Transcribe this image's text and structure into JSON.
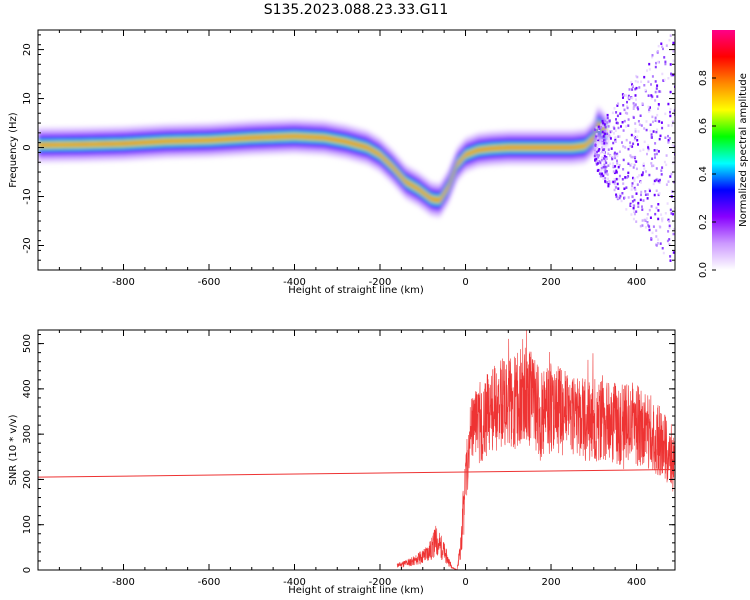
{
  "chart_data": {
    "title": "S135.2023.088.23.33.G11",
    "panels": [
      {
        "type": "heatmap",
        "xlabel": "Height of straight line (km)",
        "ylabel": "Frequency (Hz)",
        "xlim": [
          -1000,
          490
        ],
        "ylim": [
          -25,
          24
        ],
        "xticks": [
          -800,
          -600,
          -400,
          -200,
          0,
          200,
          400
        ],
        "yticks": [
          -20,
          -10,
          0,
          10,
          20
        ],
        "ridge": {
          "x": [
            -1000,
            -900,
            -800,
            -700,
            -600,
            -500,
            -400,
            -330,
            -280,
            -230,
            -200,
            -170,
            -140,
            -110,
            -80,
            -60,
            -40,
            -20,
            0,
            30,
            60,
            100,
            150,
            200,
            250,
            280,
            300,
            310,
            330
          ],
          "y": [
            0.5,
            0.6,
            0.8,
            1.3,
            1.5,
            2.0,
            2.3,
            2.0,
            1.2,
            0.0,
            -1.5,
            -4.0,
            -7.0,
            -8.5,
            -10.5,
            -10.8,
            -8.0,
            -3.5,
            -1.5,
            -0.5,
            -0.2,
            0.0,
            0.0,
            0.0,
            0.0,
            0.3,
            2.0,
            5.0,
            3.0
          ]
        },
        "colorbar": {
          "label": "Normalized spectral amplitude",
          "range": [
            0,
            1
          ],
          "ticks": [
            0.0,
            0.2,
            0.4,
            0.6,
            0.8
          ],
          "tick_labels": [
            "0.0",
            "0.2",
            "0.4",
            "0.6",
            "0.8"
          ],
          "colors": [
            "#ffffff",
            "#cc99ff",
            "#8800ff",
            "#0000ff",
            "#00ffff",
            "#00ff00",
            "#ffff00",
            "#ff8800",
            "#ff0000",
            "#ff0088"
          ]
        }
      },
      {
        "type": "line",
        "xlabel": "Height of straight line (km)",
        "ylabel": "SNR (10 * v/v)",
        "xlim": [
          -1000,
          490
        ],
        "ylim": [
          0,
          530
        ],
        "xticks": [
          -800,
          -600,
          -400,
          -200,
          0,
          200,
          400
        ],
        "yticks": [
          0,
          100,
          200,
          300,
          400,
          500
        ],
        "series": [
          {
            "color": "#ee3333",
            "x": [
              -160,
              -140,
              -120,
              -100,
              -80,
              -70,
              -60,
              -50,
              -40,
              -30,
              -20,
              -10,
              0,
              10,
              20,
              40,
              60,
              80,
              100,
              120,
              140,
              160,
              180,
              200,
              220,
              240,
              260,
              280,
              300,
              320,
              340,
              360,
              380,
              400,
              420,
              440,
              460,
              480,
              490
            ],
            "y": [
              10,
              15,
              20,
              30,
              45,
              65,
              55,
              40,
              20,
              5,
              0,
              60,
              200,
              280,
              320,
              330,
              360,
              370,
              360,
              380,
              390,
              370,
              340,
              360,
              350,
              340,
              335,
              330,
              330,
              340,
              330,
              320,
              330,
              320,
              310,
              300,
              280,
              260,
              220
            ]
          },
          {
            "color": "#ee3333",
            "x": [
              -1000,
              490
            ],
            "y": [
              205,
              222
            ]
          }
        ]
      }
    ]
  }
}
